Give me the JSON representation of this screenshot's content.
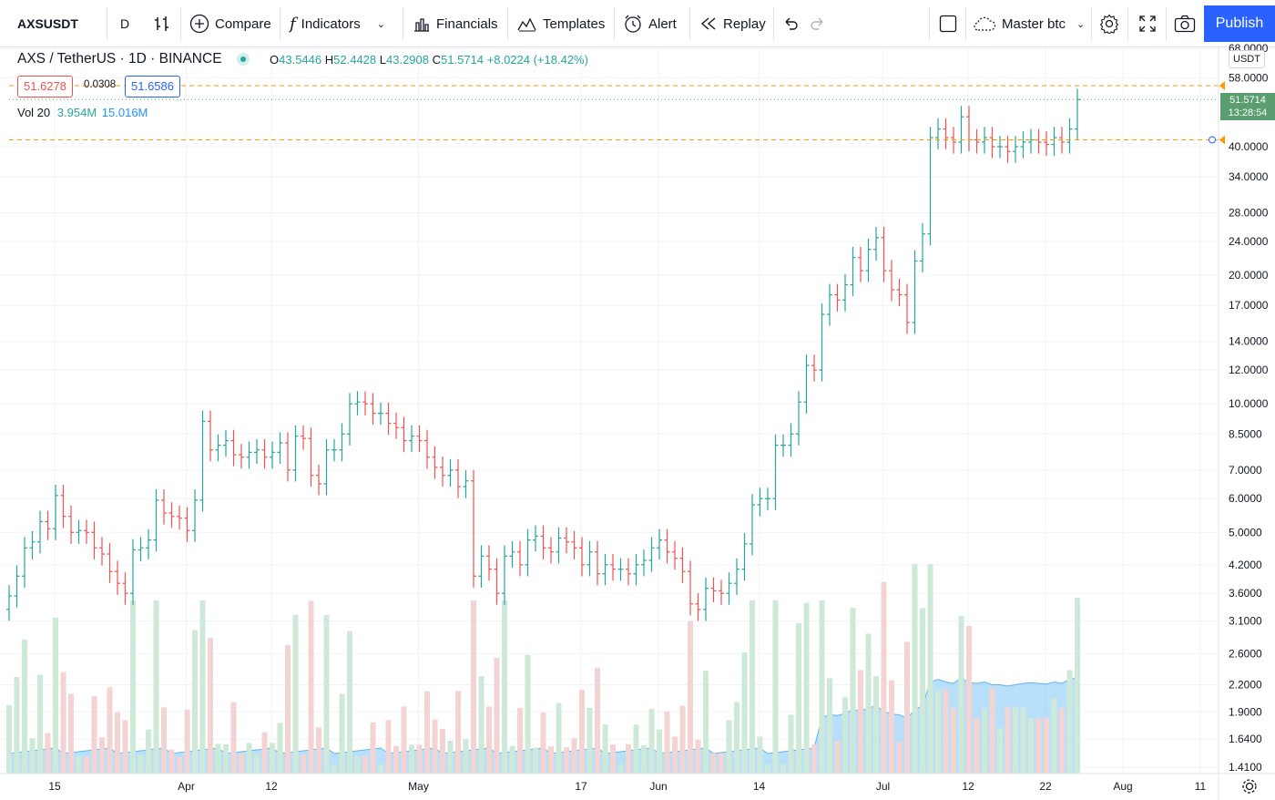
{
  "toolbar": {
    "symbol": "AXSUSDT",
    "interval": "D",
    "compare": "Compare",
    "indicators": "Indicators",
    "financials": "Financials",
    "templates": "Templates",
    "alert": "Alert",
    "replay": "Replay",
    "layout_name": "Master btc",
    "publish": "Publish"
  },
  "legend": {
    "title": "AXS / TetherUS · 1D · BINANCE",
    "o_label": "O",
    "o": "43.5446",
    "h_label": "H",
    "h": "52.4428",
    "l_label": "L",
    "l": "43.2908",
    "c_label": "C",
    "c": "51.5714",
    "change": "+8.0224 (+18.42%)",
    "sell": "51.6278",
    "spread": "0.0308",
    "buy": "51.6586",
    "vol_label": "Vol 20",
    "vol": "3.954M",
    "vol_ma": "15.016M"
  },
  "price_scale": {
    "currency": "USDT",
    "last_price": "51.5714",
    "countdown": "13:28:54"
  },
  "colors": {
    "up": "#26a69a",
    "down": "#ef5350",
    "accent": "#2962ff",
    "vol_ma_fill": "#7fc6f5",
    "alert_line": "#ff9800"
  },
  "chart_data": {
    "type": "candlestick",
    "scale": "log",
    "title": "AXS / TetherUS · 1D · BINANCE",
    "y_ticks": [
      "1.4100",
      "1.6400",
      "1.9000",
      "2.2000",
      "2.6000",
      "3.1000",
      "3.6000",
      "4.2000",
      "5.0000",
      "6.0000",
      "7.0000",
      "8.5000",
      "10.0000",
      "12.0000",
      "14.0000",
      "17.0000",
      "20.0000",
      "24.0000",
      "28.0000",
      "34.0000",
      "40.0000",
      "58.0000",
      "68.0000"
    ],
    "y_tick_values": [
      1.41,
      1.64,
      1.9,
      2.2,
      2.6,
      3.1,
      3.6,
      4.2,
      5.0,
      6.0,
      7.0,
      8.5,
      10,
      12,
      14,
      17,
      20,
      24,
      28,
      34,
      40,
      58,
      68
    ],
    "x_ticks": [
      "15",
      "Apr",
      "12",
      "May",
      "17",
      "Jun",
      "14",
      "Jul",
      "12",
      "22",
      "Aug",
      "11"
    ],
    "x_tick_day_index": [
      0,
      17,
      28,
      47,
      68,
      78,
      91,
      107,
      118,
      128,
      138,
      148
    ],
    "alert_levels": [
      55.6,
      41.5
    ],
    "closes": [
      3.55,
      3.95,
      4.6,
      4.75,
      5.3,
      5.1,
      6.1,
      5.45,
      5.0,
      5.05,
      5.0,
      4.6,
      4.45,
      4.05,
      3.8,
      3.6,
      4.55,
      4.6,
      4.8,
      5.95,
      5.55,
      5.45,
      5.4,
      5.05,
      5.95,
      9.1,
      7.8,
      8.0,
      8.2,
      7.6,
      7.5,
      7.7,
      7.8,
      7.5,
      7.7,
      8.1,
      7.0,
      8.4,
      8.3,
      6.8,
      6.5,
      7.8,
      7.8,
      8.5,
      10.0,
      10.1,
      10.0,
      9.5,
      9.5,
      9.0,
      8.8,
      8.2,
      8.4,
      8.2,
      7.5,
      7.1,
      6.8,
      7.0,
      6.4,
      6.6,
      3.95,
      4.4,
      4.1,
      3.6,
      4.4,
      4.5,
      4.2,
      4.8,
      4.9,
      4.6,
      4.5,
      4.85,
      4.75,
      4.6,
      4.2,
      4.5,
      4.0,
      4.2,
      4.1,
      4.1,
      4.0,
      4.2,
      4.3,
      4.6,
      4.8,
      4.5,
      4.35,
      4.05,
      3.4,
      3.3,
      3.7,
      3.65,
      3.6,
      3.8,
      4.1,
      4.7,
      5.8,
      6.0,
      6.0,
      8.0,
      8.0,
      8.5,
      10.1,
      12.3,
      12.0,
      16.2,
      18.0,
      17.5,
      19.0,
      22.0,
      20.5,
      23.0,
      24.5,
      20.5,
      18.5,
      18.0,
      15.5,
      21.6,
      25.0,
      42.0,
      44.0,
      42.0,
      41.0,
      47.0,
      41.5,
      41.0,
      42.0,
      40.0,
      40.0,
      39.0,
      40.0,
      41.0,
      41.5,
      41.0,
      40.5,
      42.0,
      41.0,
      44.0,
      51.5714
    ],
    "volume_ma_level": "15.016M",
    "last_close": 51.5714
  }
}
